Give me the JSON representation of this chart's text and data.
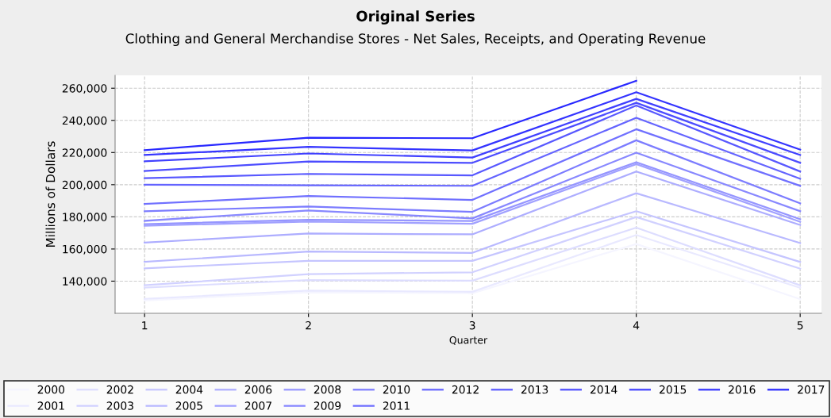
{
  "chart_data": {
    "type": "line",
    "title": "Original Series",
    "subtitle": "Clothing and General Merchandise Stores - Net Sales, Receipts, and Operating Revenue",
    "xlabel": "Quarter",
    "ylabel": "Millions of Dollars",
    "x": [
      1,
      2,
      3,
      4,
      5
    ],
    "xlim": [
      0.82,
      5.13
    ],
    "xticks": [
      1,
      2,
      3,
      4,
      5
    ],
    "ylim": [
      120000,
      268000
    ],
    "yticks": [
      {
        "value": 140000,
        "label": "140,000"
      },
      {
        "value": 160000,
        "label": "160,000"
      },
      {
        "value": 180000,
        "label": "180,000"
      },
      {
        "value": 200000,
        "label": "200,000"
      },
      {
        "value": 220000,
        "label": "220,000"
      },
      {
        "value": 240000,
        "label": "240,000"
      },
      {
        "value": 260000,
        "label": "260,000"
      }
    ],
    "grid": true,
    "legend": "bottom",
    "marker": "none",
    "line_style": "solid",
    "series": [
      {
        "name": "2000",
        "color": "#f5f5ff",
        "values": [
          128000,
          133000,
          132500,
          163100,
          128800
        ]
      },
      {
        "name": "2001",
        "color": "#e9e9ff",
        "values": [
          129000,
          134100,
          133400,
          168700,
          135800
        ]
      },
      {
        "name": "2002",
        "color": "#ddddff",
        "values": [
          136000,
          140700,
          140300,
          173300,
          137400
        ]
      },
      {
        "name": "2003",
        "color": "#d1d1ff",
        "values": [
          137500,
          144400,
          145500,
          179900,
          147800
        ]
      },
      {
        "name": "2004",
        "color": "#c5c5ff",
        "values": [
          148000,
          152600,
          152600,
          183500,
          151900
        ]
      },
      {
        "name": "2005",
        "color": "#b9b9ff",
        "values": [
          152000,
          158400,
          157600,
          194700,
          163700
        ]
      },
      {
        "name": "2006",
        "color": "#adadff",
        "values": [
          164000,
          169600,
          169100,
          208200,
          174900
        ]
      },
      {
        "name": "2007",
        "color": "#a1a1ff",
        "values": [
          174500,
          177000,
          175700,
          212800,
          176900
        ]
      },
      {
        "name": "2008",
        "color": "#9595ff",
        "values": [
          175500,
          178200,
          177400,
          214000,
          178500
        ]
      },
      {
        "name": "2009",
        "color": "#8888ff",
        "values": [
          177500,
          184000,
          179000,
          219900,
          183500
        ]
      },
      {
        "name": "2010",
        "color": "#7c7cff",
        "values": [
          183500,
          186400,
          183100,
          227600,
          188400
        ]
      },
      {
        "name": "2011",
        "color": "#7070ff",
        "values": [
          188000,
          193000,
          190500,
          234500,
          199300
        ]
      },
      {
        "name": "2012",
        "color": "#6464ff",
        "values": [
          200000,
          199600,
          199300,
          241600,
          203700
        ]
      },
      {
        "name": "2013",
        "color": "#5858ff",
        "values": [
          204000,
          206700,
          205800,
          249300,
          208200
        ]
      },
      {
        "name": "2014",
        "color": "#4c4cff",
        "values": [
          208500,
          214400,
          213600,
          250900,
          213600
        ]
      },
      {
        "name": "2015",
        "color": "#4040ff",
        "values": [
          214500,
          219400,
          216900,
          253400,
          218500
        ]
      },
      {
        "name": "2016",
        "color": "#3434ff",
        "values": [
          218500,
          223500,
          221300,
          257500,
          221800
        ]
      },
      {
        "name": "2017",
        "color": "#2828ff",
        "values": [
          221500,
          229200,
          228900,
          264600,
          null
        ]
      }
    ]
  }
}
